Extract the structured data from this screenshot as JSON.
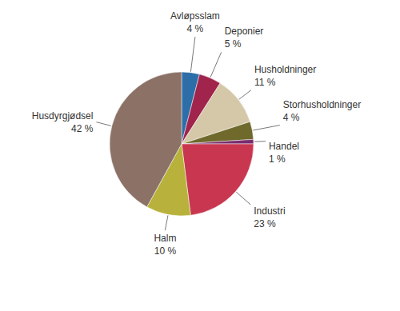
{
  "chart_data": {
    "type": "pie",
    "categories": [
      "Avløpsslam",
      "Deponier",
      "Husholdninger",
      "Storhusholdninger",
      "Handel",
      "Industri",
      "Halm",
      "Husdyrgjødsel"
    ],
    "values": [
      4,
      5,
      11,
      4,
      1,
      23,
      10,
      42
    ],
    "value_labels": [
      "4 %",
      "5 %",
      "11 %",
      "4 %",
      "1 %",
      "23 %",
      "10 %",
      "42 %"
    ],
    "colors": [
      "#2d6ea8",
      "#a0244c",
      "#d5c8a8",
      "#6f6a2c",
      "#7a2b6c",
      "#c8374f",
      "#b8b23c",
      "#8b7166"
    ],
    "data_labels": true
  }
}
